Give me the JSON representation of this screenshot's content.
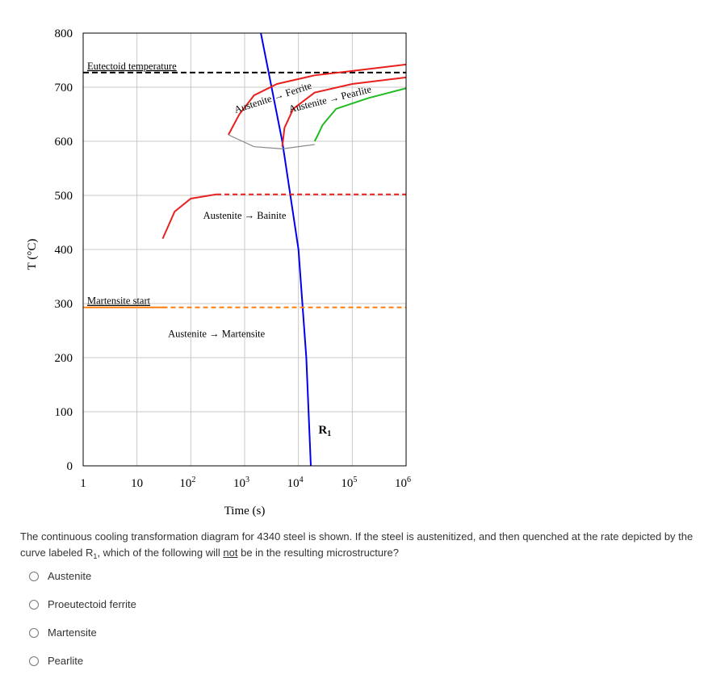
{
  "chart_data": {
    "type": "line",
    "title": "",
    "xlabel": "Time (s)",
    "ylabel": "T (°C)",
    "xscale": "log",
    "xlim": [
      1,
      1000000
    ],
    "ylim": [
      0,
      800
    ],
    "grid": true,
    "x_ticks": [
      {
        "value": 1,
        "base": "1",
        "exp": ""
      },
      {
        "value": 10,
        "base": "10",
        "exp": ""
      },
      {
        "value": 100,
        "base": "10",
        "exp": "2"
      },
      {
        "value": 1000,
        "base": "10",
        "exp": "3"
      },
      {
        "value": 10000,
        "base": "10",
        "exp": "4"
      },
      {
        "value": 100000,
        "base": "10",
        "exp": "5"
      },
      {
        "value": 1000000,
        "base": "10",
        "exp": "6"
      }
    ],
    "y_ticks": [
      "0",
      "100",
      "200",
      "300",
      "400",
      "500",
      "600",
      "700",
      "800"
    ],
    "reference_lines": [
      {
        "label": "Eutectoid temperature",
        "y": 727,
        "color": "#000000"
      },
      {
        "label": "Martensite start",
        "y": 293,
        "color": "#ff7f0e"
      }
    ],
    "series": [
      {
        "name": "R",
        "sub": "1",
        "color": "#0000ee",
        "points": [
          [
            1000,
            1056
          ],
          [
            2000,
            800
          ],
          [
            5000,
            600
          ],
          [
            10000,
            400
          ],
          [
            14000,
            200
          ],
          [
            17000,
            0
          ]
        ]
      },
      {
        "name": "Austenite → Ferrite",
        "color": "#e8201e",
        "points": [
          [
            500,
            612
          ],
          [
            800,
            650
          ],
          [
            1500,
            685
          ],
          [
            4000,
            706
          ],
          [
            20000,
            722
          ],
          [
            100000,
            730
          ],
          [
            1000000,
            742
          ]
        ]
      },
      {
        "name": "Austenite → Pearlite",
        "color": "#e8201e",
        "points": [
          [
            5000,
            590
          ],
          [
            5500,
            625
          ],
          [
            8000,
            660
          ],
          [
            20000,
            690
          ],
          [
            100000,
            706
          ],
          [
            1000000,
            718
          ]
        ]
      },
      {
        "name": "Austenite → Pearlite (cont.)",
        "color": "#22bb22",
        "points": [
          [
            20000,
            600
          ],
          [
            23000,
            612
          ],
          [
            28000,
            630
          ],
          [
            50000,
            660
          ],
          [
            200000,
            680
          ],
          [
            1000000,
            698
          ]
        ]
      },
      {
        "name": "Austenite → Bainite",
        "color": "#e8201e",
        "points": [
          [
            30,
            420
          ],
          [
            50,
            470
          ],
          [
            100,
            494
          ],
          [
            300,
            502
          ]
        ]
      },
      {
        "name": "Austenite → Bainite (dashed)",
        "color": "#e8201e",
        "dashed": true,
        "points": [
          [
            300,
            502
          ],
          [
            1000000,
            502
          ]
        ]
      },
      {
        "name": "Austenite → Martensite",
        "color": "#ff7f0e",
        "dashed": true,
        "points": [
          [
            30,
            293
          ],
          [
            1000000,
            293
          ]
        ]
      },
      {
        "name": "start curve",
        "color": "#888888",
        "points": [
          [
            500,
            612
          ],
          [
            1500,
            590
          ],
          [
            5000,
            586
          ],
          [
            20000,
            594
          ]
        ]
      }
    ],
    "annotations": [
      {
        "text": "Austenite → Ferrite",
        "x": 3500,
        "y": 675,
        "rotate": -18
      },
      {
        "text": "Austenite → Pearlite",
        "x": 40000,
        "y": 672,
        "rotate": -14
      },
      {
        "text": "Austenite → Bainite",
        "x": 1000,
        "y": 457,
        "rotate": 0
      },
      {
        "text": "Austenite → Martensite",
        "x": 300,
        "y": 238,
        "rotate": 0
      }
    ]
  },
  "question": {
    "part1": "The continuous cooling transformation diagram for 4340 steel is shown. If the steel is austenitized, and then quenched at the rate depicted by the curve labeled R",
    "sub": "1",
    "part2": ", which of the following will ",
    "emph": "not",
    "part3": " be in the resulting microstructure?"
  },
  "options": [
    {
      "label": "Austenite"
    },
    {
      "label": "Proeutectoid ferrite"
    },
    {
      "label": "Martensite"
    },
    {
      "label": "Pearlite"
    }
  ]
}
